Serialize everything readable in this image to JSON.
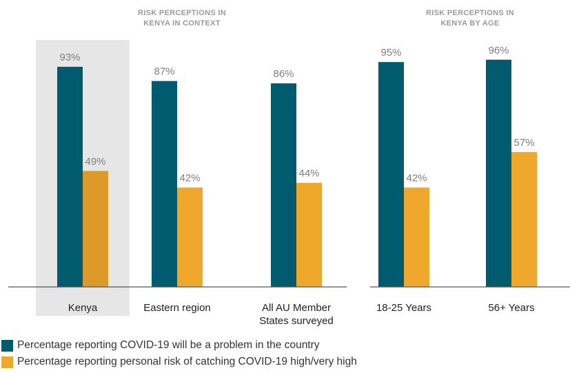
{
  "colors": {
    "problem": "#005b6e",
    "personal_risk": "#f0a82c",
    "personal_risk_highlight": "#dd9a29",
    "highlight_bg": "#e6e6e6",
    "axis": "#555555"
  },
  "chart_data": [
    {
      "type": "bar",
      "title": "RISK PERCEPTIONS IN KENYA IN CONTEXT",
      "categories": [
        "Kenya",
        "Eastern region",
        "All AU Member States surveyed"
      ],
      "highlight_category": "Kenya",
      "ylim": [
        0,
        100
      ],
      "series": [
        {
          "name": "Percentage reporting COVID-19 will be a problem in the country",
          "values": [
            93,
            87,
            86
          ],
          "labels": [
            "93%",
            "87%",
            "86%"
          ]
        },
        {
          "name": "Percentage reporting personal risk of catching COVID-19 high/very high",
          "values": [
            49,
            42,
            44
          ],
          "labels": [
            "49%",
            "42%",
            "44%"
          ]
        }
      ]
    },
    {
      "type": "bar",
      "title": "RISK PERCEPTIONS IN KENYA BY AGE",
      "categories": [
        "18-25 Years",
        "56+ Years"
      ],
      "ylim": [
        0,
        100
      ],
      "series": [
        {
          "name": "Percentage reporting COVID-19 will be a problem in the country",
          "values": [
            95,
            96
          ],
          "labels": [
            "95%",
            "96%"
          ]
        },
        {
          "name": "Percentage reporting personal risk of catching COVID-19 high/very high",
          "values": [
            42,
            57
          ],
          "labels": [
            "42%",
            "57%"
          ]
        }
      ]
    }
  ],
  "legend": [
    {
      "label": "Percentage reporting COVID-19 will be a problem in the country",
      "color": "#005b6e"
    },
    {
      "label": "Percentage reporting personal risk of catching COVID-19 high/very high",
      "color": "#f0a82c"
    }
  ]
}
